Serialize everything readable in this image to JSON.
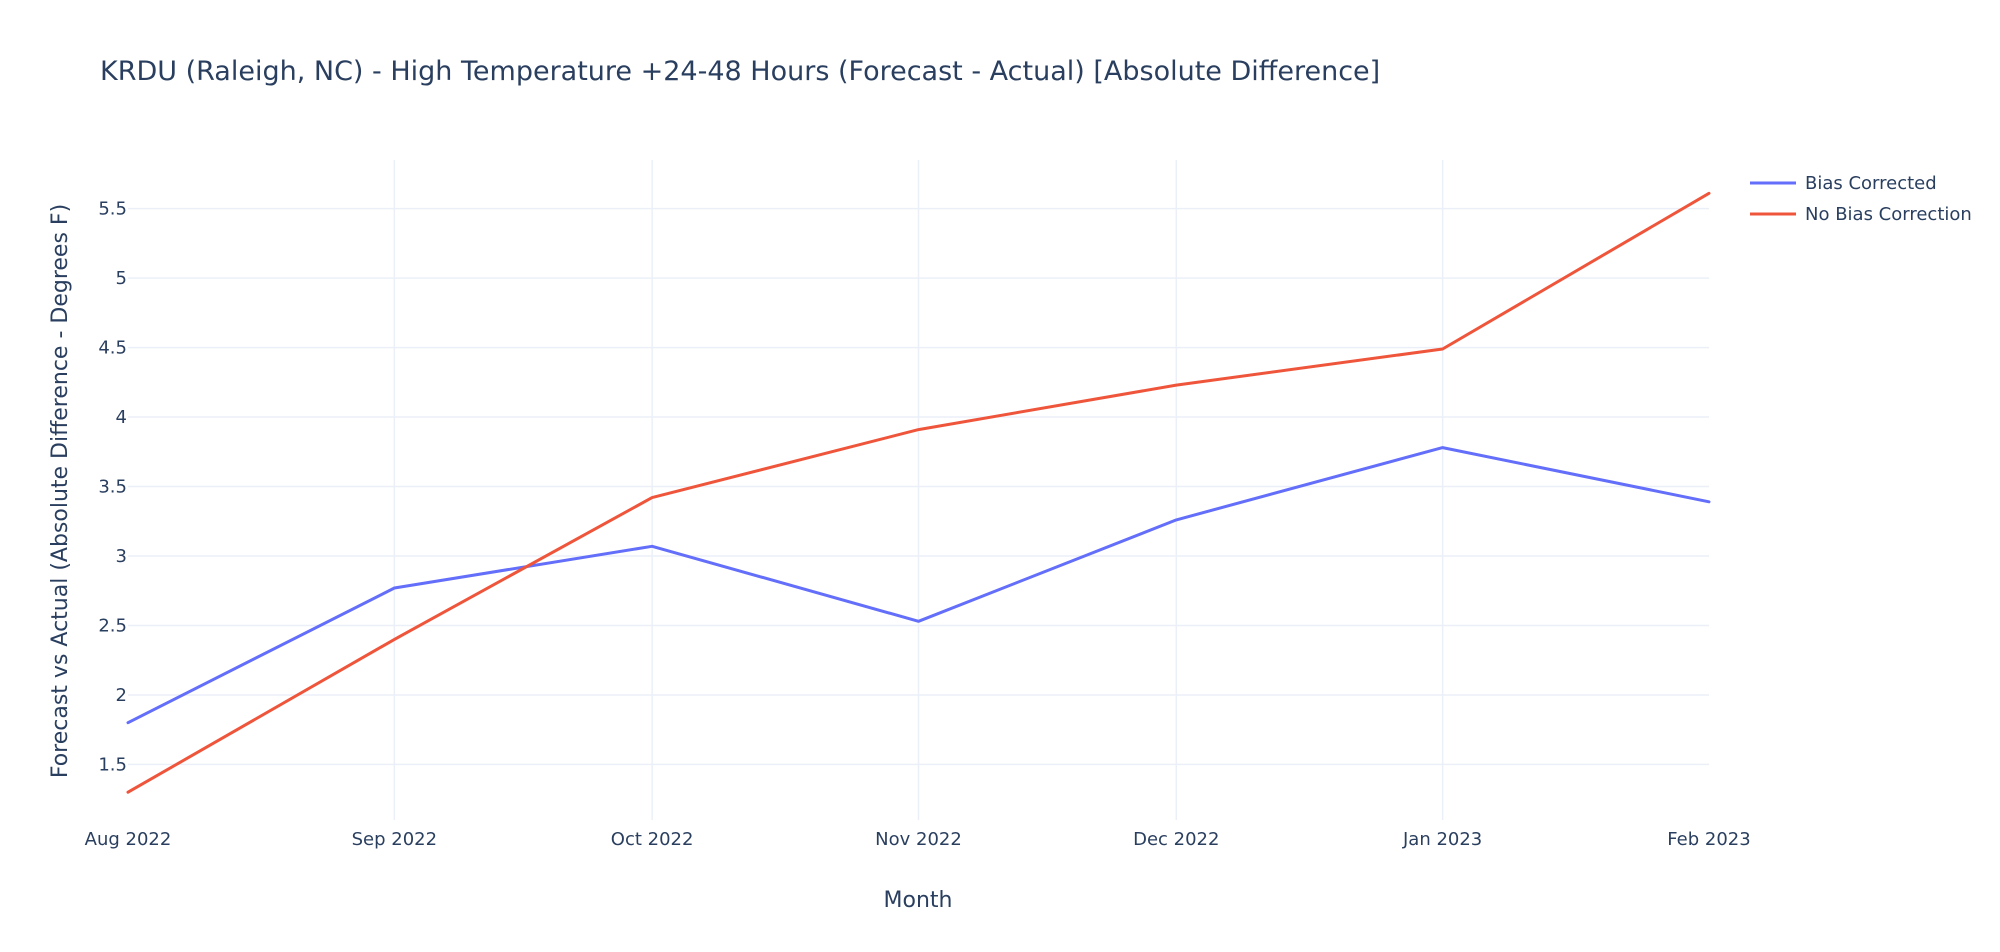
{
  "chart_data": {
    "type": "line",
    "title": "KRDU (Raleigh, NC) - High Temperature +24-48 Hours (Forecast - Actual) [Absolute Difference]",
    "xlabel": "Month",
    "ylabel": "Forecast vs Actual (Absolute Difference - Degrees F)",
    "x": [
      "Aug 2022",
      "Sep 2022",
      "Oct 2022",
      "Nov 2022",
      "Dec 2022",
      "Jan 2023",
      "Feb 2023"
    ],
    "x_dates": [
      "2022-08-01",
      "2022-09-01",
      "2022-10-01",
      "2022-11-01",
      "2022-12-01",
      "2023-01-01",
      "2023-02-01"
    ],
    "ylim": [
      1.1,
      5.85
    ],
    "yticks": [
      1.5,
      2,
      2.5,
      3,
      3.5,
      4,
      4.5,
      5,
      5.5
    ],
    "ytick_labels": [
      "1.5",
      "2",
      "2.5",
      "3",
      "3.5",
      "4",
      "4.5",
      "5",
      "5.5"
    ],
    "grid": true,
    "legend_position": "top-right",
    "series": [
      {
        "name": "Bias Corrected",
        "color": "#636efa",
        "values": [
          1.8,
          2.77,
          3.07,
          2.53,
          3.26,
          3.78,
          3.39
        ]
      },
      {
        "name": "No Bias Correction",
        "color": "#ef553b",
        "values": [
          1.3,
          2.4,
          3.42,
          3.91,
          4.23,
          4.49,
          5.61
        ]
      }
    ]
  }
}
